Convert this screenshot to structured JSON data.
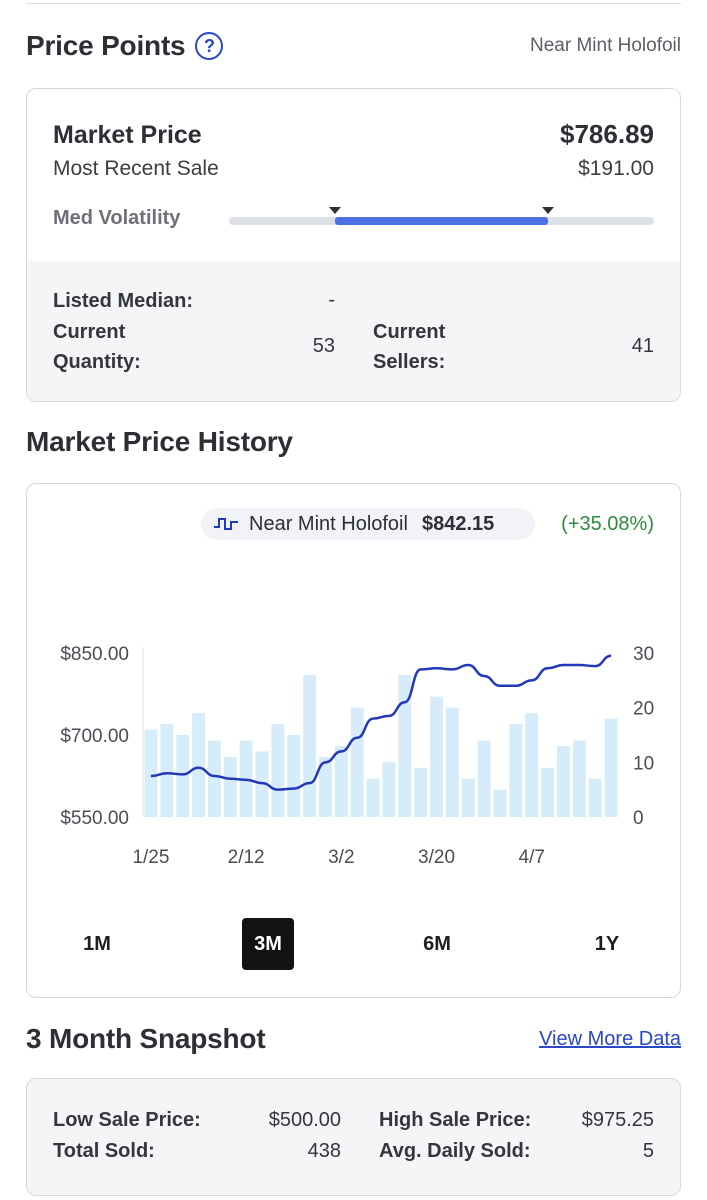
{
  "price_points": {
    "title": "Price Points",
    "condition": "Near Mint Holofoil",
    "market_price_label": "Market Price",
    "market_price_value": "$786.89",
    "recent_sale_label": "Most Recent Sale",
    "recent_sale_value": "$191.00",
    "volatility_label": "Med Volatility",
    "volatility_range": [
      0.25,
      0.75
    ],
    "listed_median_label": "Listed Median:",
    "listed_median_value": "-",
    "current_quantity_label_1": "Current",
    "current_quantity_label_2": "Quantity:",
    "current_quantity_value": "53",
    "current_sellers_label_1": "Current",
    "current_sellers_label_2": "Sellers:",
    "current_sellers_value": "41"
  },
  "history": {
    "title": "Market Price History",
    "legend_name": "Near Mint Holofoil",
    "legend_price": "$842.15",
    "legend_change": "(+35.08%)",
    "ranges": [
      "1M",
      "3M",
      "6M",
      "1Y"
    ],
    "active_range": "3M"
  },
  "chart_data": {
    "type": "bar+line",
    "y_left_ticks": [
      "$850.00",
      "$700.00",
      "$550.00"
    ],
    "y_left_range": [
      550,
      850
    ],
    "y_right_ticks": [
      "30",
      "20",
      "10",
      "0"
    ],
    "y_right_range": [
      0,
      30
    ],
    "x_ticks": [
      "1/25",
      "2/12",
      "3/2",
      "3/20",
      "4/7"
    ],
    "series": [
      {
        "values": [
          16,
          17,
          15,
          19,
          14,
          11,
          14,
          12,
          17,
          15,
          26,
          11,
          13,
          20,
          7,
          10,
          26,
          9,
          22,
          20,
          7,
          14,
          5,
          17,
          19,
          9,
          13,
          14,
          7,
          18
        ]
      },
      {
        "values": [
          625,
          630,
          628,
          640,
          625,
          620,
          618,
          612,
          600,
          602,
          612,
          650,
          670,
          695,
          730,
          735,
          760,
          820,
          822,
          820,
          828,
          808,
          790,
          790,
          800,
          822,
          828,
          828,
          826,
          845
        ]
      }
    ],
    "colors": {
      "bars": "#d6ecfb",
      "line": "#2238b8"
    }
  },
  "snapshot": {
    "title": "3 Month Snapshot",
    "view_more": "View More Data",
    "low_label": "Low Sale Price:",
    "low_value": "$500.00",
    "high_label": "High Sale Price:",
    "high_value": "$975.25",
    "total_label": "Total Sold:",
    "total_value": "438",
    "avg_label": "Avg. Daily Sold:",
    "avg_value": "5"
  }
}
